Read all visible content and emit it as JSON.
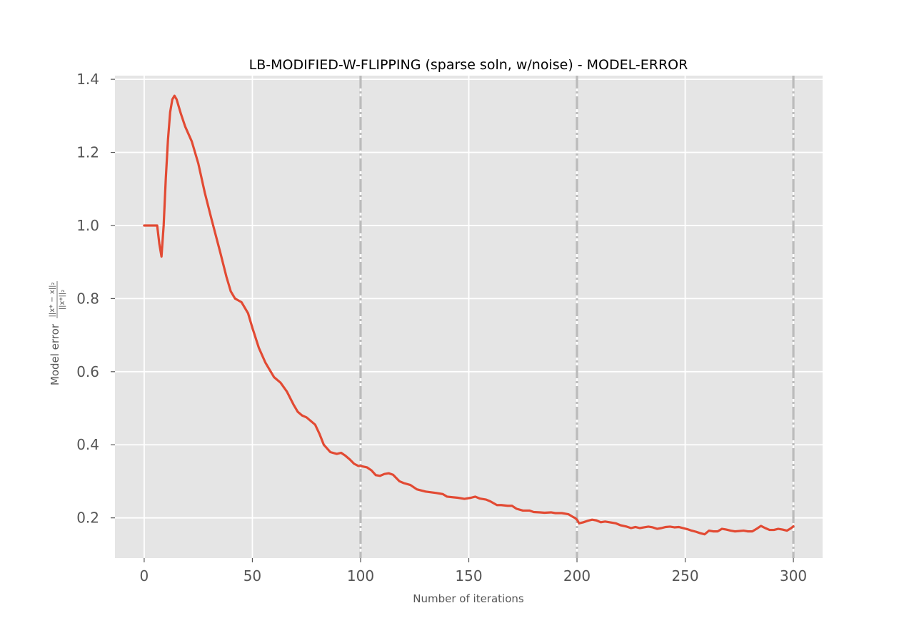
{
  "chart_data": {
    "type": "line",
    "title": "LB-MODIFIED-W-FLIPPING (sparse soln, w/noise) - MODEL-ERROR",
    "xlabel": "Number of iterations",
    "ylabel_text": "Model error",
    "ylabel_numerator": "||x* − x||₂",
    "ylabel_denominator": "||x*||₂",
    "xlim": [
      -13.5,
      313.5
    ],
    "ylim": [
      0.09,
      1.41
    ],
    "x_ticks": [
      0,
      50,
      100,
      150,
      200,
      250,
      300
    ],
    "x_tick_labels": [
      "0",
      "50",
      "100",
      "150",
      "200",
      "250",
      "300"
    ],
    "y_ticks": [
      0.2,
      0.4,
      0.6,
      0.8,
      1.0,
      1.2,
      1.4
    ],
    "y_tick_labels": [
      "0.2",
      "0.4",
      "0.6",
      "0.8",
      "1.0",
      "1.2",
      "1.4"
    ],
    "grid": true,
    "style": "ggplot",
    "vlines": [
      100,
      200,
      300
    ],
    "series": [
      {
        "color": "#E24A33",
        "x": [
          0,
          6,
          7,
          8,
          9,
          10,
          11,
          12,
          13,
          14,
          15,
          17,
          19,
          22,
          25,
          28,
          31,
          35,
          38,
          40,
          42,
          45,
          48,
          50,
          53,
          56,
          58,
          60,
          63,
          66,
          69,
          71,
          73,
          75,
          77,
          79,
          81,
          83,
          86,
          89,
          91,
          93,
          95,
          97,
          99,
          100,
          103,
          105,
          107,
          109,
          111,
          113,
          115,
          118,
          120,
          123,
          126,
          130,
          135,
          138,
          140,
          145,
          148,
          151,
          153,
          155,
          158,
          160,
          163,
          165,
          168,
          170,
          172,
          175,
          178,
          180,
          183,
          185,
          188,
          190,
          193,
          196,
          198,
          199,
          200,
          201,
          203,
          205,
          207,
          209,
          211,
          213,
          215,
          218,
          220,
          223,
          225,
          227,
          229,
          231,
          233,
          235,
          237,
          239,
          241,
          243,
          245,
          247,
          249,
          251,
          253,
          255,
          257,
          259,
          261,
          263,
          265,
          267,
          269,
          271,
          273,
          275,
          277,
          279,
          281,
          283,
          285,
          287,
          289,
          291,
          293,
          295,
          297,
          299,
          300
        ],
        "y": [
          1.0,
          1.0,
          0.95,
          0.915,
          1.0,
          1.13,
          1.235,
          1.31,
          1.345,
          1.355,
          1.345,
          1.305,
          1.27,
          1.23,
          1.17,
          1.09,
          1.02,
          0.93,
          0.86,
          0.82,
          0.8,
          0.79,
          0.76,
          0.72,
          0.665,
          0.625,
          0.605,
          0.585,
          0.57,
          0.545,
          0.51,
          0.49,
          0.48,
          0.475,
          0.465,
          0.455,
          0.43,
          0.4,
          0.38,
          0.375,
          0.378,
          0.37,
          0.36,
          0.348,
          0.342,
          0.342,
          0.338,
          0.33,
          0.317,
          0.315,
          0.32,
          0.322,
          0.318,
          0.3,
          0.295,
          0.29,
          0.278,
          0.272,
          0.268,
          0.265,
          0.258,
          0.255,
          0.252,
          0.255,
          0.258,
          0.253,
          0.25,
          0.245,
          0.235,
          0.235,
          0.233,
          0.233,
          0.225,
          0.22,
          0.22,
          0.216,
          0.215,
          0.214,
          0.215,
          0.213,
          0.213,
          0.21,
          0.203,
          0.2,
          0.195,
          0.185,
          0.188,
          0.192,
          0.195,
          0.193,
          0.188,
          0.19,
          0.188,
          0.185,
          0.18,
          0.176,
          0.172,
          0.175,
          0.172,
          0.174,
          0.176,
          0.174,
          0.17,
          0.172,
          0.175,
          0.176,
          0.174,
          0.175,
          0.172,
          0.169,
          0.165,
          0.162,
          0.158,
          0.155,
          0.165,
          0.163,
          0.163,
          0.17,
          0.168,
          0.165,
          0.163,
          0.164,
          0.165,
          0.163,
          0.163,
          0.17,
          0.178,
          0.172,
          0.167,
          0.167,
          0.17,
          0.168,
          0.165,
          0.172,
          0.177
        ]
      }
    ]
  }
}
